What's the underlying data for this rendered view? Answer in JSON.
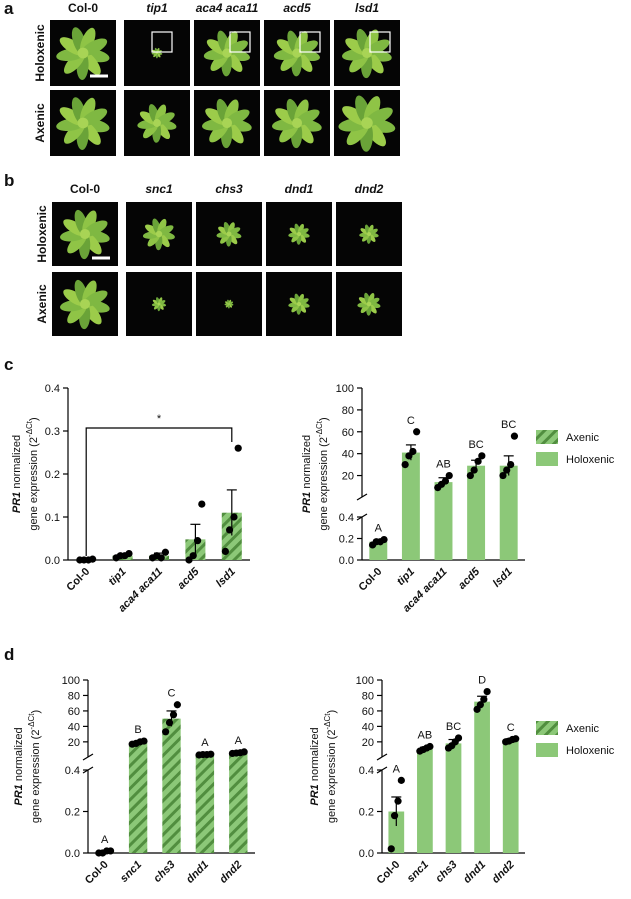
{
  "panels": [
    {
      "label": "a",
      "columns": [
        "Col-0",
        "tip1",
        "aca4 aca11",
        "acd5",
        "lsd1"
      ],
      "rows": [
        "Holoxenic",
        "Axenic"
      ]
    },
    {
      "label": "b",
      "columns": [
        "Col-0",
        "snc1",
        "chs3",
        "dnd1",
        "dnd2"
      ],
      "rows": [
        "Holoxenic",
        "Axenic"
      ]
    },
    {
      "label": "c"
    },
    {
      "label": "d"
    }
  ],
  "chart_data": [
    {
      "type": "bar",
      "ylabel": {
        "gene": "PR1",
        "text": " normalized",
        "line2": "gene expression (2",
        "sup": "-ΔCt",
        "end": ")"
      },
      "categories": [
        "Col-0",
        "tip1",
        "aca4 aca11",
        "acd5",
        "lsd1"
      ],
      "values": [
        0.001,
        0.01,
        0.01,
        0.048,
        0.11
      ],
      "errors": [
        0.002,
        0.004,
        0.006,
        0.035,
        0.053
      ],
      "points": [
        [
          0,
          0,
          0,
          0.002
        ],
        [
          0.005,
          0.01,
          0.01,
          0.015
        ],
        [
          0.005,
          0.01,
          0.005,
          0.018
        ],
        [
          0,
          0.01,
          0.045,
          0.13
        ],
        [
          0.02,
          0.07,
          0.1,
          0.26
        ]
      ],
      "significance": "*",
      "ylim": [
        0,
        0.4
      ],
      "yticks": [
        {
          "value": 0,
          "label": "0.0"
        },
        0.1,
        0.2,
        0.3,
        0.4
      ],
      "pattern": "hatched",
      "color": "#8cc878"
    },
    {
      "type": "bar",
      "ylabel": {
        "gene": "PR1",
        "text": " normalized",
        "line2": "gene expression (2",
        "sup": "-ΔCt",
        "end": ")"
      },
      "categories": [
        "Col-0",
        "tip1",
        "aca4 aca11",
        "acd5",
        "lsd1"
      ],
      "values": [
        0.17,
        41,
        14,
        29,
        29
      ],
      "errors": [
        0.015,
        7,
        4,
        5,
        9
      ],
      "points": [
        [
          0.14,
          0.17,
          0.17,
          0.19
        ],
        [
          30,
          38,
          42,
          60
        ],
        [
          9,
          12,
          15,
          20
        ],
        [
          20,
          25,
          33,
          38
        ],
        [
          20,
          25,
          30,
          56
        ]
      ],
      "letters": [
        "A",
        "C",
        "AB",
        "BC",
        "BC"
      ],
      "ylim": [
        0,
        100
      ],
      "ysegments": [
        [
          0,
          0.4
        ],
        [
          0.4,
          100
        ]
      ],
      "yticks": [
        {
          "value": 0,
          "label": "0.0"
        },
        0.2,
        0.4,
        20,
        40,
        60,
        80,
        100
      ],
      "pattern": "solid",
      "color": "#8cc878",
      "legend": [
        {
          "name": "Axenic",
          "pattern": "hatched"
        },
        {
          "name": "Holoxenic",
          "pattern": "solid"
        }
      ]
    },
    {
      "type": "bar",
      "ylabel": {
        "gene": "PR1",
        "text": " normalized",
        "line2": "gene expression (2",
        "sup": "-ΔCt",
        "end": ")"
      },
      "categories": [
        "Col-0",
        "snc1",
        "chs3",
        "dnd1",
        "dnd2"
      ],
      "values": [
        0.005,
        19,
        50,
        3.5,
        6
      ],
      "errors": [
        0.003,
        1.5,
        10,
        0.3,
        1
      ],
      "points": [
        [
          0,
          0,
          0.01,
          0.01
        ],
        [
          17,
          18,
          20,
          21
        ],
        [
          33,
          45,
          55,
          68
        ],
        [
          3,
          3.5,
          3.5,
          4
        ],
        [
          5,
          5.5,
          6,
          7
        ]
      ],
      "letters": [
        "A",
        "B",
        "C",
        "A",
        "A"
      ],
      "ylim": [
        0,
        100
      ],
      "ysegments": [
        [
          0,
          0.4
        ],
        [
          0.4,
          100
        ]
      ],
      "yticks": [
        {
          "value": 0,
          "label": "0.0"
        },
        0.2,
        0.4,
        20,
        40,
        60,
        80,
        100
      ],
      "pattern": "hatched",
      "color": "#8cc878"
    },
    {
      "type": "bar",
      "ylabel": {
        "gene": "PR1",
        "text": " normalized",
        "line2": "gene expression (2",
        "sup": "-ΔCt",
        "end": ")"
      },
      "categories": [
        "Col-0",
        "snc1",
        "chs3",
        "dnd1",
        "dnd2"
      ],
      "values": [
        0.2,
        11,
        18,
        72,
        22
      ],
      "errors": [
        0.07,
        2,
        5,
        7,
        2
      ],
      "points": [
        [
          0.02,
          0.18,
          0.25,
          0.35
        ],
        [
          8,
          10,
          12,
          14
        ],
        [
          12,
          15,
          20,
          25
        ],
        [
          62,
          68,
          75,
          85
        ],
        [
          20,
          21,
          23,
          24
        ]
      ],
      "letters": [
        "A",
        "AB",
        "BC",
        "D",
        "C"
      ],
      "ylim": [
        0,
        100
      ],
      "ysegments": [
        [
          0,
          0.4
        ],
        [
          0.4,
          100
        ]
      ],
      "yticks": [
        {
          "value": 0,
          "label": "0.0"
        },
        0.2,
        0.4,
        20,
        40,
        60,
        80,
        100
      ],
      "pattern": "solid",
      "color": "#8cc878",
      "legend": [
        {
          "name": "Axenic",
          "pattern": "hatched"
        },
        {
          "name": "Holoxenic",
          "pattern": "solid"
        }
      ]
    }
  ]
}
